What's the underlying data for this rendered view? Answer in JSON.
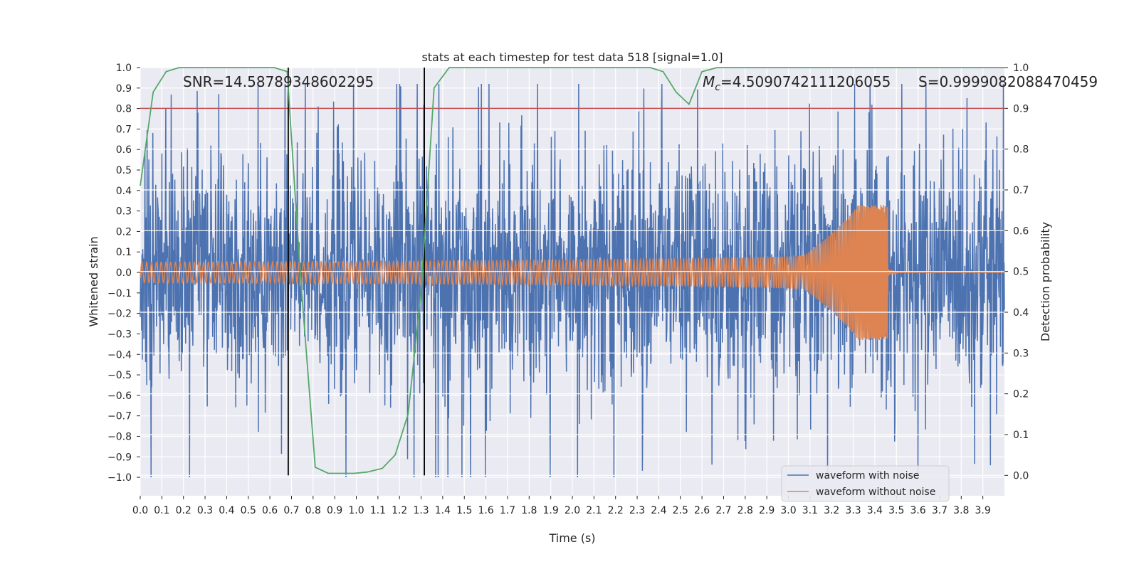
{
  "chart_data": {
    "type": "line",
    "title": "stats at each timestep for test data 518 [signal=1.0]",
    "xlabel": "Time (s)",
    "ylabel_left": "Whitened strain",
    "ylabel_right": "Detection probability",
    "xlim": [
      0.0,
      4.0
    ],
    "ylim_left": [
      -1.09,
      1.0
    ],
    "ylim_right": [
      -0.05,
      1.0
    ],
    "x_ticks": [
      "0.0",
      "0.1",
      "0.2",
      "0.3",
      "0.4",
      "0.5",
      "0.6",
      "0.7",
      "0.8",
      "0.9",
      "1.0",
      "1.1",
      "1.2",
      "1.3",
      "1.4",
      "1.5",
      "1.6",
      "1.7",
      "1.8",
      "1.9",
      "2.0",
      "2.1",
      "2.2",
      "2.3",
      "2.4",
      "2.5",
      "2.6",
      "2.7",
      "2.8",
      "2.9",
      "3.0",
      "3.1",
      "3.2",
      "3.3",
      "3.4",
      "3.5",
      "3.6",
      "3.7",
      "3.8",
      "3.9"
    ],
    "y_ticks_left": [
      "−1.0",
      "−0.9",
      "−0.8",
      "−0.7",
      "−0.6",
      "−0.5",
      "−0.4",
      "−0.3",
      "−0.2",
      "−0.1",
      "0.0",
      "0.1",
      "0.2",
      "0.3",
      "0.4",
      "0.5",
      "0.6",
      "0.7",
      "0.8",
      "0.9",
      "1.0"
    ],
    "y_ticks_right": [
      "0.0",
      "0.1",
      "0.2",
      "0.3",
      "0.4",
      "0.5",
      "0.6",
      "0.7",
      "0.8",
      "0.9",
      "1.0"
    ],
    "annotations": {
      "snr": "SNR=14.58789348602295",
      "mc": "=4.5090742111206055",
      "mc_symbol": "M",
      "mc_subscript": "c",
      "s": "S=0.9999082088470459"
    },
    "threshold": {
      "value_right": 0.9,
      "color": "#c44e52"
    },
    "vlines_x": [
      0.685,
      1.315
    ],
    "detection_probability": {
      "name": "detection probability",
      "color": "#55a868",
      "x": [
        0.0,
        0.06,
        0.12,
        0.18,
        0.25,
        0.31,
        0.37,
        0.43,
        0.5,
        0.56,
        0.62,
        0.68,
        0.74,
        0.81,
        0.87,
        0.93,
        0.99,
        1.05,
        1.12,
        1.18,
        1.24,
        1.3,
        1.36,
        1.43,
        1.49,
        1.55,
        1.61,
        1.67,
        1.74,
        1.8,
        1.86,
        1.92,
        1.98,
        2.05,
        2.11,
        2.17,
        2.23,
        2.3,
        2.36,
        2.42,
        2.48,
        2.54,
        2.6,
        2.67,
        2.73,
        2.79,
        2.85,
        2.91,
        2.98,
        3.04,
        3.1,
        3.16,
        3.22,
        3.29,
        3.35,
        3.41,
        3.47,
        3.53,
        3.6,
        3.66,
        3.72,
        3.78,
        3.84,
        3.91,
        4.0
      ],
      "values": [
        0.71,
        0.94,
        0.99,
        1.0,
        1.0,
        1.0,
        1.0,
        1.0,
        1.0,
        1.0,
        1.0,
        0.99,
        0.5,
        0.02,
        0.005,
        0.005,
        0.005,
        0.008,
        0.017,
        0.05,
        0.15,
        0.45,
        0.95,
        1.0,
        1.0,
        1.0,
        1.0,
        1.0,
        1.0,
        1.0,
        1.0,
        1.0,
        1.0,
        1.0,
        1.0,
        1.0,
        1.0,
        1.0,
        1.0,
        0.99,
        0.94,
        0.91,
        0.99,
        1.0,
        1.0,
        1.0,
        1.0,
        1.0,
        1.0,
        1.0,
        1.0,
        1.0,
        1.0,
        1.0,
        1.0,
        1.0,
        1.0,
        1.0,
        1.0,
        1.0,
        1.0,
        1.0,
        1.0,
        1.0,
        1.0
      ]
    },
    "series": [
      {
        "name": "waveform with noise",
        "color": "#4c72b0",
        "envelope": "noise amplitude approx ±0.9 with spikes up to 0.92 and down to −1.0"
      },
      {
        "name": "waveform without noise",
        "color": "#dd8452",
        "chirp": {
          "start_amplitude": 0.05,
          "peak_amplitude": 0.33,
          "merger_time": 3.46,
          "post_merger_amplitude": 0.02
        }
      }
    ],
    "legend": {
      "position": "bottom-right",
      "entries": [
        "waveform with noise",
        "waveform without noise"
      ]
    },
    "grid": true
  }
}
